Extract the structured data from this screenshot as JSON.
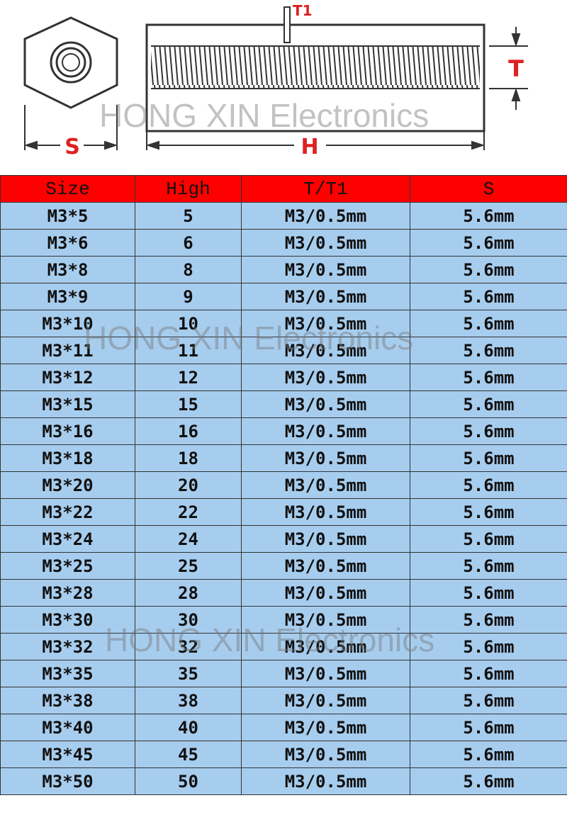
{
  "diagram": {
    "labels": {
      "t1": "T1",
      "t": "T",
      "s": "S",
      "h": "H"
    }
  },
  "watermark": "HONG XIN Electronics",
  "table": {
    "header": [
      "Size",
      "High",
      "T/T1",
      "S"
    ],
    "rows": [
      [
        "M3*5",
        5,
        "M3/0.5mm",
        "5.6mm"
      ],
      [
        "M3*6",
        6,
        "M3/0.5mm",
        "5.6mm"
      ],
      [
        "M3*8",
        8,
        "M3/0.5mm",
        "5.6mm"
      ],
      [
        "M3*9",
        9,
        "M3/0.5mm",
        "5.6mm"
      ],
      [
        "M3*10",
        10,
        "M3/0.5mm",
        "5.6mm"
      ],
      [
        "M3*11",
        11,
        "M3/0.5mm",
        "5.6mm"
      ],
      [
        "M3*12",
        12,
        "M3/0.5mm",
        "5.6mm"
      ],
      [
        "M3*15",
        15,
        "M3/0.5mm",
        "5.6mm"
      ],
      [
        "M3*16",
        16,
        "M3/0.5mm",
        "5.6mm"
      ],
      [
        "M3*18",
        18,
        "M3/0.5mm",
        "5.6mm"
      ],
      [
        "M3*20",
        20,
        "M3/0.5mm",
        "5.6mm"
      ],
      [
        "M3*22",
        22,
        "M3/0.5mm",
        "5.6mm"
      ],
      [
        "M3*24",
        24,
        "M3/0.5mm",
        "5.6mm"
      ],
      [
        "M3*25",
        25,
        "M3/0.5mm",
        "5.6mm"
      ],
      [
        "M3*28",
        28,
        "M3/0.5mm",
        "5.6mm"
      ],
      [
        "M3*30",
        30,
        "M3/0.5mm",
        "5.6mm"
      ],
      [
        "M3*32",
        32,
        "M3/0.5mm",
        "5.6mm"
      ],
      [
        "M3*35",
        35,
        "M3/0.5mm",
        "5.6mm"
      ],
      [
        "M3*38",
        38,
        "M3/0.5mm",
        "5.6mm"
      ],
      [
        "M3*40",
        40,
        "M3/0.5mm",
        "5.6mm"
      ],
      [
        "M3*45",
        45,
        "M3/0.5mm",
        "5.6mm"
      ],
      [
        "M3*50",
        50,
        "M3/0.5mm",
        "5.6mm"
      ]
    ]
  }
}
